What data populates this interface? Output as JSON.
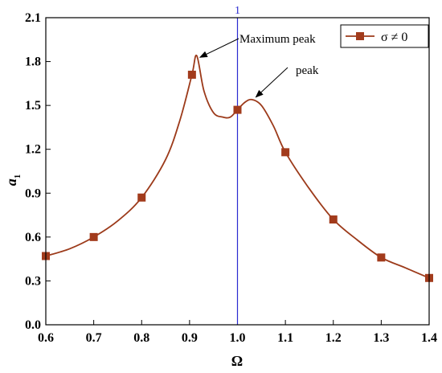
{
  "chart_data": {
    "type": "line",
    "xlabel": "Ω",
    "ylabel": "a",
    "ylabel_subscript": "1",
    "xlim": [
      0.6,
      1.4
    ],
    "ylim": [
      0.0,
      2.1
    ],
    "x_ticks": [
      "0.6",
      "0.7",
      "0.8",
      "0.9",
      "1.0",
      "1.1",
      "1.2",
      "1.3",
      "1.4"
    ],
    "y_ticks": [
      "0.0",
      "0.3",
      "0.6",
      "0.9",
      "1.2",
      "1.5",
      "1.8",
      "2.1"
    ],
    "grid": false,
    "legend_position": "top-right",
    "series": [
      {
        "name": "σ ≠ 0",
        "color": "#9c3a1a",
        "marker_color": "#a23b1c",
        "markers": {
          "x": [
            0.6,
            0.7,
            0.8,
            0.905,
            1.0,
            1.1,
            1.2,
            1.3,
            1.4
          ],
          "y": [
            0.47,
            0.6,
            0.87,
            1.71,
            1.47,
            1.18,
            0.72,
            0.46,
            0.32
          ]
        },
        "curve": {
          "x": [
            0.6,
            0.65,
            0.7,
            0.75,
            0.8,
            0.85,
            0.88,
            0.905,
            0.915,
            0.93,
            0.95,
            0.97,
            0.985,
            1.0,
            1.015,
            1.03,
            1.05,
            1.075,
            1.1,
            1.15,
            1.2,
            1.25,
            1.3,
            1.35,
            1.4
          ],
          "y": [
            0.47,
            0.52,
            0.6,
            0.71,
            0.87,
            1.13,
            1.4,
            1.71,
            1.84,
            1.6,
            1.45,
            1.42,
            1.42,
            1.47,
            1.52,
            1.54,
            1.5,
            1.36,
            1.18,
            0.93,
            0.72,
            0.58,
            0.46,
            0.39,
            0.32
          ]
        }
      }
    ],
    "vertical_line": {
      "x": 1.0,
      "label": "1",
      "color": "#2a2ad0"
    },
    "annotations": [
      {
        "text": "Maximum peak",
        "target": [
          0.915,
          1.84
        ]
      },
      {
        "text": "peak",
        "target": [
          1.03,
          1.54
        ]
      }
    ]
  }
}
